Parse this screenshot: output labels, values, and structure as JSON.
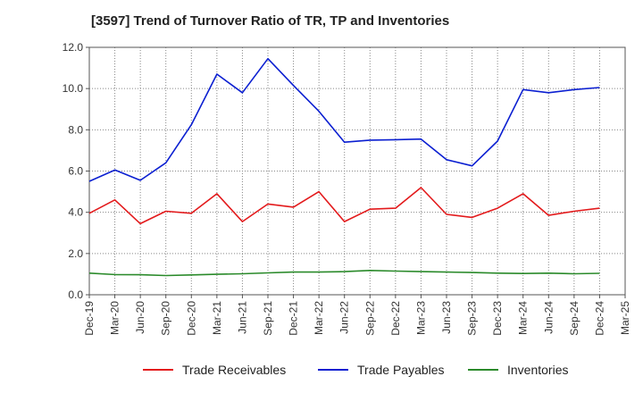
{
  "chart_data": {
    "type": "line",
    "title": "[3597]  Trend of Turnover Ratio of TR, TP and Inventories",
    "xlabel": "",
    "ylabel": "",
    "ylim": [
      0,
      12
    ],
    "yticks": [
      "0.0",
      "2.0",
      "4.0",
      "6.0",
      "8.0",
      "10.0",
      "12.0"
    ],
    "x_tick_labels": [
      "Dec-19",
      "Mar-20",
      "Jun-20",
      "Sep-20",
      "Dec-20",
      "Mar-21",
      "Jun-21",
      "Sep-21",
      "Dec-21",
      "Mar-22",
      "Jun-22",
      "Sep-22",
      "Dec-22",
      "Mar-23",
      "Jun-23",
      "Sep-23",
      "Dec-23",
      "Mar-24",
      "Jun-24",
      "Sep-24",
      "Dec-24",
      "Mar-25"
    ],
    "x": [
      "Dec-19",
      "Mar-20",
      "Jun-20",
      "Sep-20",
      "Dec-20",
      "Mar-21",
      "Jun-21",
      "Sep-21",
      "Dec-21",
      "Mar-22",
      "Jun-22",
      "Sep-22",
      "Dec-22",
      "Mar-23",
      "Jun-23",
      "Sep-23",
      "Dec-23",
      "Mar-24",
      "Jun-24",
      "Sep-24",
      "Dec-24"
    ],
    "grid": true,
    "legend_position": "bottom",
    "series": [
      {
        "name": "Trade Receivables",
        "color": "#e31a1c",
        "values": [
          3.95,
          4.6,
          3.45,
          4.05,
          3.95,
          4.9,
          3.55,
          4.4,
          4.25,
          5.0,
          3.55,
          4.15,
          4.2,
          5.2,
          3.9,
          3.75,
          4.2,
          4.9,
          3.85,
          4.05,
          4.2
        ]
      },
      {
        "name": "Trade Payables",
        "color": "#0b1fd1",
        "values": [
          5.5,
          6.05,
          5.55,
          6.4,
          8.25,
          10.7,
          9.8,
          11.45,
          10.15,
          8.9,
          7.4,
          7.5,
          7.52,
          7.55,
          6.55,
          6.25,
          7.45,
          9.95,
          9.8,
          9.95,
          10.05
        ]
      },
      {
        "name": "Inventories",
        "color": "#2a8a2a",
        "values": [
          1.05,
          0.98,
          0.97,
          0.93,
          0.96,
          0.99,
          1.02,
          1.06,
          1.1,
          1.1,
          1.12,
          1.18,
          1.15,
          1.12,
          1.1,
          1.08,
          1.05,
          1.03,
          1.05,
          1.02,
          1.04
        ]
      }
    ]
  }
}
